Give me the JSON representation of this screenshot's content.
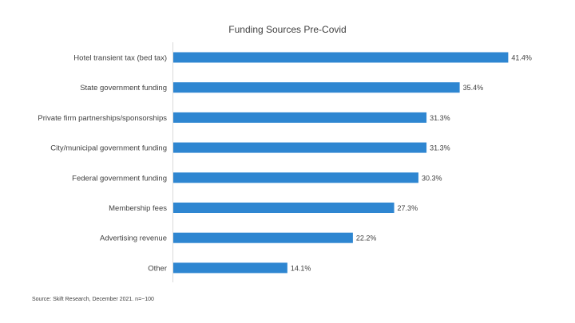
{
  "chart_data": {
    "type": "bar",
    "orientation": "horizontal",
    "title": "Funding Sources Pre-Covid",
    "categories": [
      "Hotel transient tax (bed tax)",
      "State government funding",
      "Private firm partnerships/sponsorships",
      "City/municipal government funding",
      "Federal government funding",
      "Membership fees",
      "Advertising revenue",
      "Other"
    ],
    "values": [
      41.4,
      35.4,
      31.3,
      31.3,
      30.3,
      27.3,
      22.2,
      14.1
    ],
    "value_labels": [
      "41.4%",
      "35.4%",
      "31.3%",
      "31.3%",
      "30.3%",
      "27.3%",
      "22.2%",
      "14.1%"
    ],
    "xlim": [
      0,
      45
    ],
    "bar_color": "#2e86d1",
    "axis_color": "#d9d9d9",
    "grid": false,
    "legend": "none"
  },
  "source": "Source: Skift Research, December 2021. n=~100"
}
